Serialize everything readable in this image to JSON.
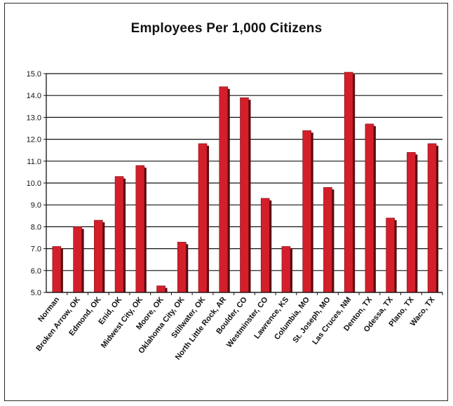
{
  "chart_data": {
    "type": "bar",
    "title": "Employees Per 1,000 Citizens",
    "xlabel": "",
    "ylabel": "",
    "ylim": [
      5.0,
      15.0
    ],
    "yticks": [
      "5.0",
      "6.0",
      "7.0",
      "8.0",
      "9.0",
      "10.0",
      "11.0",
      "12.0",
      "13.0",
      "14.0",
      "15.0"
    ],
    "grid": true,
    "categories": [
      "Norman",
      "Broken Arrow, OK",
      "Edmond, OK",
      "Enid, OK",
      "Midwest City, OK",
      "Moore, OK",
      "Oklahoma City, OK",
      "Stillwater, OK",
      "North Little Rock, AR",
      "Boulder, CO",
      "Westminster, CO",
      "Lawrence, KS",
      "Columbia, MO",
      "St. Joseph, MO",
      "Las Cruces, NM",
      "Denton, TX",
      "Odessa, TX",
      "Plano, TX",
      "Waco, TX"
    ],
    "values": [
      7.1,
      8.0,
      8.3,
      10.3,
      10.8,
      5.3,
      7.3,
      11.8,
      14.4,
      13.9,
      9.3,
      7.1,
      12.4,
      9.8,
      15.2,
      12.7,
      8.4,
      11.4,
      11.8
    ],
    "colors": {
      "bar": "#d41f2b",
      "bar_shadow": "#5a0a10",
      "grid": "#111111",
      "axis": "#111111"
    }
  }
}
